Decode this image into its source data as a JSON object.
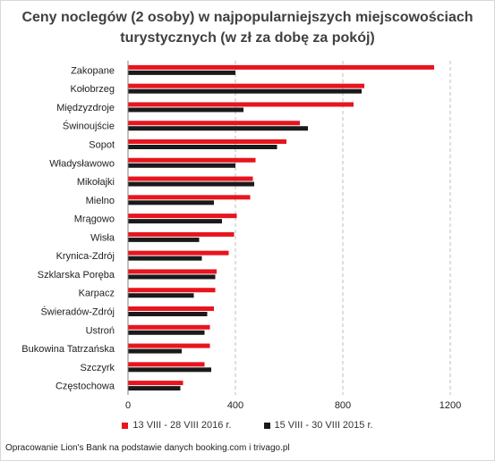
{
  "title_line1": "Ceny noclegów (2 osoby) w najpopularniejszych miejscowościach",
  "title_line2": "turystycznych (w zł za dobę za pokój)",
  "source": "Opracowanie Lion's Bank na podstawie danych booking.com i trivago.pl",
  "chart_data": {
    "type": "bar",
    "orientation": "horizontal",
    "title": "Ceny noclegów (2 osoby) w najpopularniejszych miejscowościach turystycznych (w zł za dobę za pokój)",
    "categories": [
      "Zakopane",
      "Kołobrzeg",
      "Międzyzdroje",
      "Świnoujście",
      "Sopot",
      "Władysławowo",
      "Mikołajki",
      "Mielno",
      "Mrągowo",
      "Wisła",
      "Krynica-Zdrój",
      "Szklarska Poręba",
      "Karpacz",
      "Świeradów-Zdrój",
      "Ustroń",
      "Bukowina Tatrzańska",
      "Szczyrk",
      "Częstochowa"
    ],
    "series": [
      {
        "name": "13 VIII - 28 VIII 2016 r.",
        "color": "#e8141e",
        "values": [
          1140,
          880,
          840,
          640,
          590,
          475,
          465,
          455,
          405,
          395,
          375,
          330,
          325,
          320,
          305,
          305,
          285,
          205
        ]
      },
      {
        "name": "15 VIII - 30 VIII 2015 r.",
        "color": "#1a1a1a",
        "values": [
          400,
          870,
          430,
          670,
          555,
          400,
          470,
          320,
          350,
          265,
          275,
          325,
          245,
          295,
          285,
          200,
          310,
          195
        ]
      }
    ],
    "xticks": [
      0,
      400,
      800,
      1200
    ],
    "xlim": [
      0,
      1200
    ],
    "grid": true,
    "legend": "bottom"
  }
}
